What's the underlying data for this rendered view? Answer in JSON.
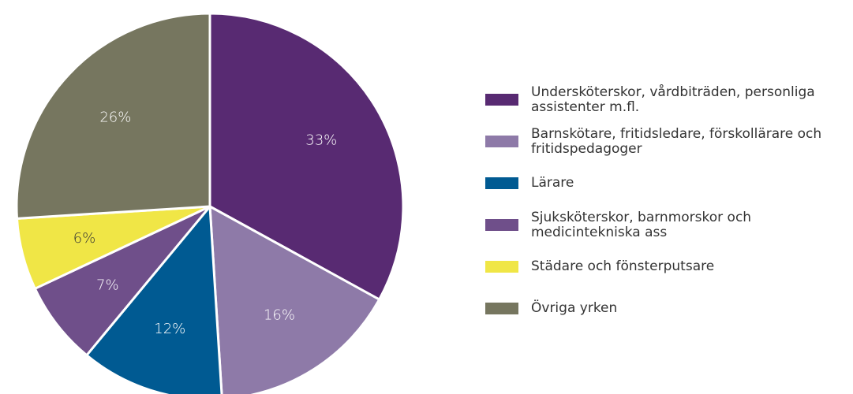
{
  "chart_data": {
    "type": "pie",
    "categories": [
      "Undersköterskor, vårdbiträden, personliga assistenter m.fl.",
      "Barnskötare, fritidsledare, förskollärare och fritidspedagoger",
      "Lärare",
      "Sjuksköterskor, barnmorskor och medicintekniska ass",
      "Städare och fönsterputsare",
      "Övriga yrken"
    ],
    "values": [
      33,
      16,
      12,
      7,
      6,
      26
    ],
    "value_labels": [
      "33%",
      "16%",
      "12%",
      "7%",
      "6%",
      "26%"
    ],
    "colors": [
      "#582a72",
      "#8e7aa8",
      "#005a92",
      "#6f4f8a",
      "#f0e646",
      "#76765f"
    ],
    "legend": "right"
  }
}
